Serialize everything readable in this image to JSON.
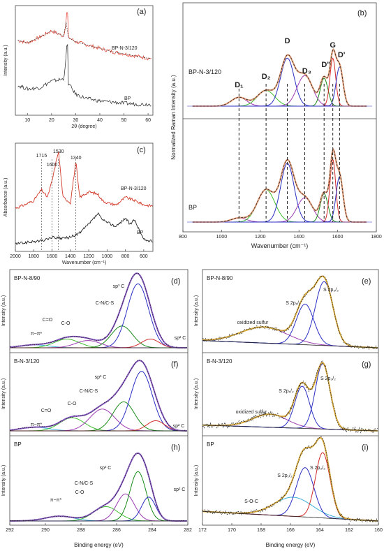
{
  "chart_data": [
    {
      "panel": "(a)",
      "type": "line",
      "xlabel": "2θ (degree)",
      "ylabel": "Intensity (a.u.)",
      "xlim": [
        5,
        62
      ],
      "xticks": [
        "10",
        "20",
        "30",
        "40",
        "50",
        "60"
      ],
      "series": [
        {
          "name": "BP-N-3/120",
          "color": "#e03a2a",
          "x": [
            5,
            10,
            15,
            20,
            22,
            25,
            26.6,
            27,
            30,
            35,
            40,
            45,
            50,
            55,
            60
          ],
          "y": [
            0.74,
            0.71,
            0.76,
            0.82,
            0.8,
            0.77,
            0.98,
            0.76,
            0.72,
            0.69,
            0.66,
            0.63,
            0.61,
            0.59,
            0.57
          ]
        },
        {
          "name": "BP",
          "color": "#222222",
          "x": [
            5,
            10,
            15,
            20,
            22,
            25,
            26.6,
            27,
            30,
            35,
            40,
            45,
            50,
            55,
            60
          ],
          "y": [
            0.33,
            0.29,
            0.3,
            0.36,
            0.37,
            0.38,
            0.68,
            0.34,
            0.24,
            0.2,
            0.18,
            0.17,
            0.16,
            0.15,
            0.15
          ]
        }
      ]
    },
    {
      "panel": "(b)",
      "type": "line",
      "xlabel": "Wavenumber (cm⁻¹)",
      "ylabel": "Normalized Raman Intensity (a.u.)",
      "xlim": [
        800,
        1800
      ],
      "xticks": [
        "800",
        "1000",
        "1200",
        "1400",
        "1600",
        "1800"
      ],
      "band_labels": [
        "D₁",
        "D₂",
        "D",
        "D₃",
        "D''",
        "G",
        "D'"
      ],
      "band_positions": [
        1090,
        1230,
        1340,
        1430,
        1530,
        1575,
        1610
      ],
      "dashed_lines_x": [
        1090,
        1230,
        1340,
        1430,
        1530,
        1575,
        1610
      ],
      "series": [
        {
          "name": "BP-N-3/120",
          "label": "BP-N-3/120",
          "band_heights": [
            0.1,
            0.18,
            0.55,
            0.35,
            0.32,
            0.55,
            0.45
          ],
          "band_colors": [
            "#9b3bb0",
            "#3fbf2e",
            "#2a2fc2",
            "#9b3bb0",
            "#1a8a1a",
            "#d22a2a",
            "#2a2fc2"
          ]
        },
        {
          "name": "BP",
          "label": "BP",
          "band_heights": [
            0.04,
            0.32,
            0.58,
            0.24,
            0.28,
            0.62,
            0.45
          ],
          "band_colors": [
            "#9b3bb0",
            "#3fbf2e",
            "#2a2fc2",
            "#9b3bb0",
            "#1a8a1a",
            "#d22a2a",
            "#2a2fc2"
          ]
        }
      ]
    },
    {
      "panel": "(c)",
      "type": "line",
      "xlabel": "Wavenumber (cm⁻¹)",
      "ylabel": "Absorbance (a.u.)",
      "xlim": [
        2000,
        500
      ],
      "xticks": [
        "2000",
        "1800",
        "1600",
        "1400",
        "1200",
        "1000",
        "800",
        "600"
      ],
      "peak_labels": [
        "1715",
        "1600",
        "1530",
        "1340"
      ],
      "series": [
        {
          "name": "BP-N-3/120",
          "color": "#d23a2a",
          "x": [
            2000,
            1900,
            1800,
            1715,
            1650,
            1600,
            1530,
            1480,
            1400,
            1340,
            1300,
            1200,
            1100,
            1050,
            1000,
            900,
            800,
            700,
            600,
            500
          ],
          "y": [
            0.45,
            0.48,
            0.52,
            0.62,
            0.55,
            0.7,
            0.98,
            0.55,
            0.5,
            0.88,
            0.55,
            0.6,
            0.58,
            0.52,
            0.5,
            0.48,
            0.55,
            0.52,
            0.48,
            0.47
          ]
        },
        {
          "name": "BP",
          "color": "#222222",
          "x": [
            2000,
            1900,
            1800,
            1700,
            1600,
            1500,
            1400,
            1300,
            1200,
            1100,
            1050,
            1000,
            900,
            800,
            750,
            700,
            600,
            500
          ],
          "y": [
            0.12,
            0.13,
            0.14,
            0.15,
            0.18,
            0.17,
            0.18,
            0.22,
            0.3,
            0.4,
            0.34,
            0.32,
            0.28,
            0.36,
            0.3,
            0.34,
            0.16,
            0.14
          ]
        }
      ]
    },
    {
      "panel": "(d)",
      "type": "line",
      "label": "BP-N-8/90",
      "xlabel": "Binding energy (eV)",
      "ylabel": "Intensity (a.u.)",
      "xlim": [
        292,
        282
      ],
      "xticks": [
        "292",
        "290",
        "288",
        "286",
        "284",
        "282"
      ],
      "peak_names": [
        "π−π*",
        "C=O",
        "C-O",
        "C-N/C-S",
        "sp³ C",
        "sp² C"
      ],
      "components": [
        [
          290.6,
          0.04,
          0.8
        ],
        [
          288.8,
          0.12,
          0.7
        ],
        [
          287.6,
          0.1,
          0.7
        ],
        [
          285.7,
          0.3,
          0.6
        ],
        [
          284.8,
          0.88,
          0.6
        ],
        [
          284.1,
          0.12,
          0.5
        ]
      ]
    },
    {
      "panel": "(e)",
      "type": "line",
      "label": "BP-N-8/90",
      "xlabel": "Binding energy (eV)",
      "ylabel": "Intensity (a.u.)",
      "xlim": [
        172,
        160
      ],
      "xticks": [
        "172",
        "170",
        "168",
        "166",
        "164",
        "162",
        "160"
      ],
      "peak_names": [
        "oxidized sulfur",
        "S 2p₁/₂",
        "S 2p₃/₂"
      ],
      "components": [
        [
          167.8,
          0.22,
          1.6
        ],
        [
          165.0,
          0.56,
          0.6
        ],
        [
          163.7,
          0.88,
          0.6
        ]
      ]
    },
    {
      "panel": "(f)",
      "type": "line",
      "label": "B-N-3/120",
      "xlabel": "Binding energy (eV)",
      "ylabel": "Intensity (a.u.)",
      "xlim": [
        292,
        282
      ],
      "xticks": [
        "292",
        "290",
        "288",
        "286",
        "284",
        "282"
      ],
      "peak_names": [
        "π−π*",
        "C=O",
        "C-O",
        "C-N/C-S",
        "sp³ C",
        "sp² C"
      ],
      "components": [
        [
          290.6,
          0.05,
          0.8
        ],
        [
          288.5,
          0.18,
          0.7
        ],
        [
          286.8,
          0.3,
          0.7
        ],
        [
          285.6,
          0.4,
          0.6
        ],
        [
          284.6,
          0.82,
          0.6
        ],
        [
          283.8,
          0.14,
          0.5
        ]
      ]
    },
    {
      "panel": "(g)",
      "type": "line",
      "label": "B-N-3/120",
      "xlabel": "Binding energy (eV)",
      "ylabel": "Intensity (a.u.)",
      "xlim": [
        172,
        160
      ],
      "xticks": [
        "172",
        "170",
        "168",
        "166",
        "164",
        "162",
        "160"
      ],
      "peak_names": [
        "oxidized sulfur",
        "S 2p₁/₂",
        "S 2p₃/₂"
      ],
      "components": [
        [
          167.4,
          0.18,
          1.2
        ],
        [
          165.2,
          0.58,
          0.5
        ],
        [
          163.8,
          0.9,
          0.5
        ]
      ]
    },
    {
      "panel": "(h)",
      "type": "line",
      "label": "BP",
      "xlabel": "Binding energy (eV)",
      "ylabel": "Intensity (a.u.)",
      "xlim": [
        292,
        282
      ],
      "xticks": [
        "292",
        "290",
        "288",
        "286",
        "284",
        "282"
      ],
      "peak_names": [
        "π−π*",
        "C-O",
        "C-N/C-S",
        "sp³ C",
        "sp² C"
      ],
      "components": [
        [
          289.2,
          0.06,
          0.8
        ],
        [
          286.6,
          0.18,
          0.7
        ],
        [
          285.5,
          0.34,
          0.5
        ],
        [
          284.8,
          0.62,
          0.45
        ],
        [
          284.2,
          0.3,
          0.4
        ]
      ]
    },
    {
      "panel": "(i)",
      "type": "line",
      "label": "BP",
      "xlabel": "Binding energy (eV)",
      "ylabel": "Intensity (a.u.)",
      "xlim": [
        172,
        160
      ],
      "xticks": [
        "172",
        "170",
        "168",
        "166",
        "164",
        "162",
        "160"
      ],
      "peak_names": [
        "S-O-C",
        "S 2p₁/₂",
        "S 2p₃/₂"
      ],
      "components": [
        [
          165.8,
          0.24,
          1.3
        ],
        [
          165.0,
          0.62,
          0.6
        ],
        [
          163.8,
          0.82,
          0.5
        ]
      ]
    }
  ]
}
